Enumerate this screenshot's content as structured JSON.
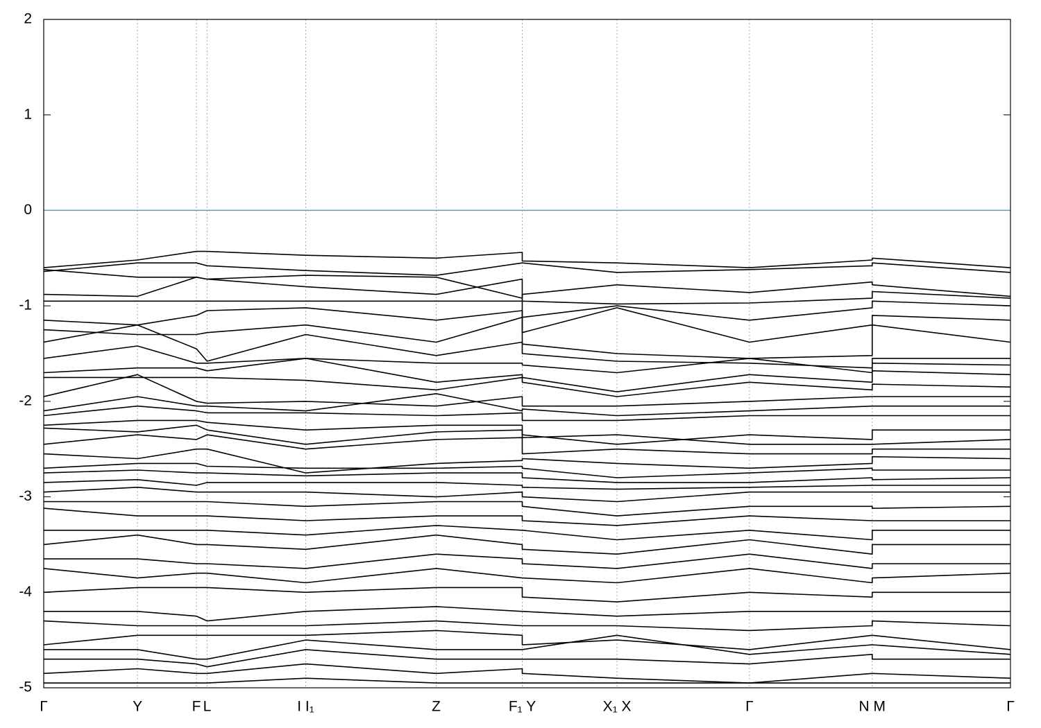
{
  "chart_data": {
    "type": "line",
    "color": "#000000",
    "fermi_level": 0,
    "fermi_color": "#4aa6bf",
    "x": [
      0,
      0.097,
      0.158,
      0.169,
      0.271,
      0.406,
      0.495,
      0.495,
      0.593,
      0.73,
      0.857,
      0.857,
      1
    ],
    "xlim": [
      0,
      1
    ],
    "xticks": [
      {
        "value": 0,
        "label": "Γ"
      },
      {
        "value": 0.097,
        "label": "Y"
      },
      {
        "value": 0.158,
        "label": "F"
      },
      {
        "value": 0.169,
        "label": "L"
      },
      {
        "value": 0.271,
        "label": "I I₁"
      },
      {
        "value": 0.406,
        "label": "Z"
      },
      {
        "value": 0.495,
        "label": "F₁ Y"
      },
      {
        "value": 0.593,
        "label": "X₁ X"
      },
      {
        "value": 0.73,
        "label": "Γ"
      },
      {
        "value": 0.857,
        "label": "N M"
      },
      {
        "value": 1,
        "label": "Γ"
      }
    ],
    "xgrid": true,
    "ylim": [
      -5,
      2
    ],
    "yticks": [
      2,
      1,
      0,
      -1,
      -2,
      -3,
      -4,
      -5
    ],
    "series": [
      {
        "values": [
          -0.6,
          -0.52,
          -0.43,
          -0.43,
          -0.47,
          -0.5,
          -0.44,
          -0.53,
          -0.55,
          -0.6,
          -0.52,
          -0.5,
          -0.6
        ]
      },
      {
        "values": [
          -0.64,
          -0.55,
          -0.55,
          -0.58,
          -0.63,
          -0.68,
          -0.55,
          -0.55,
          -0.65,
          -0.62,
          -0.58,
          -0.55,
          -0.65
        ]
      },
      {
        "values": [
          -0.62,
          -0.7,
          -0.7,
          -0.72,
          -0.68,
          -0.7,
          -0.92,
          -0.88,
          -0.78,
          -0.86,
          -0.75,
          -0.78,
          -0.9
        ]
      },
      {
        "values": [
          -0.88,
          -0.9,
          -0.7,
          -0.72,
          -0.8,
          -0.88,
          -0.72,
          -0.95,
          -0.98,
          -0.97,
          -0.92,
          -0.85,
          -0.92
        ]
      },
      {
        "values": [
          -0.95,
          -0.95,
          -0.95,
          -0.95,
          -0.95,
          -0.95,
          -0.95,
          -1.12,
          -1.0,
          -1.15,
          -1.02,
          -0.95,
          -1.0
        ]
      },
      {
        "values": [
          -1.15,
          -1.2,
          -1.1,
          -1.05,
          -1.02,
          -1.15,
          -1.05,
          -1.28,
          -1.02,
          -1.38,
          -1.2,
          -1.1,
          -1.15
        ]
      },
      {
        "values": [
          -1.25,
          -1.3,
          -1.3,
          -1.28,
          -1.2,
          -1.38,
          -1.12,
          -1.4,
          -1.5,
          -1.55,
          -1.52,
          -1.2,
          -1.38
        ]
      },
      {
        "values": [
          -1.38,
          -1.2,
          -1.45,
          -1.58,
          -1.3,
          -1.52,
          -1.38,
          -1.5,
          -1.58,
          -1.6,
          -1.65,
          -1.55,
          -1.55
        ]
      },
      {
        "values": [
          -1.55,
          -1.42,
          -1.6,
          -1.6,
          -1.55,
          -1.6,
          -1.6,
          -1.62,
          -1.7,
          -1.55,
          -1.7,
          -1.6,
          -1.62
        ]
      },
      {
        "values": [
          -1.7,
          -1.65,
          -1.65,
          -1.68,
          -1.55,
          -1.8,
          -1.72,
          -1.75,
          -1.9,
          -1.72,
          -1.8,
          -1.68,
          -1.72
        ]
      },
      {
        "values": [
          -1.75,
          -1.75,
          -1.75,
          -1.75,
          -1.78,
          -1.88,
          -1.75,
          -1.8,
          -1.95,
          -1.8,
          -1.88,
          -1.82,
          -1.85
        ]
      },
      {
        "values": [
          -1.95,
          -1.72,
          -2.0,
          -2.02,
          -2.0,
          -2.05,
          -1.95,
          -2.05,
          -2.05,
          -2.0,
          -1.95,
          -1.95,
          -1.95
        ]
      },
      {
        "values": [
          -2.1,
          -1.95,
          -2.05,
          -2.05,
          -2.1,
          -1.92,
          -2.1,
          -2.08,
          -2.15,
          -2.1,
          -2.05,
          -2.05,
          -2.05
        ]
      },
      {
        "values": [
          -2.15,
          -2.05,
          -2.1,
          -2.12,
          -2.12,
          -2.15,
          -2.12,
          -2.2,
          -2.2,
          -2.15,
          -2.15,
          -2.15,
          -2.15
        ]
      },
      {
        "values": [
          -2.25,
          -2.2,
          -2.2,
          -2.22,
          -2.3,
          -2.25,
          -2.25,
          -2.35,
          -2.45,
          -2.35,
          -2.4,
          -2.3,
          -2.3
        ]
      },
      {
        "values": [
          -2.28,
          -2.32,
          -2.25,
          -2.3,
          -2.45,
          -2.32,
          -2.3,
          -2.38,
          -2.35,
          -2.45,
          -2.45,
          -2.45,
          -2.4
        ]
      },
      {
        "values": [
          -2.45,
          -2.35,
          -2.4,
          -2.35,
          -2.5,
          -2.4,
          -2.38,
          -2.55,
          -2.5,
          -2.55,
          -2.55,
          -2.5,
          -2.5
        ]
      },
      {
        "values": [
          -2.55,
          -2.6,
          -2.5,
          -2.5,
          -2.75,
          -2.65,
          -2.62,
          -2.6,
          -2.65,
          -2.7,
          -2.65,
          -2.58,
          -2.6
        ]
      },
      {
        "values": [
          -2.7,
          -2.65,
          -2.65,
          -2.68,
          -2.7,
          -2.7,
          -2.68,
          -2.7,
          -2.8,
          -2.75,
          -2.7,
          -2.72,
          -2.72
        ]
      },
      {
        "values": [
          -2.75,
          -2.72,
          -2.75,
          -2.75,
          -2.78,
          -2.75,
          -2.75,
          -2.8,
          -2.85,
          -2.85,
          -2.8,
          -2.82,
          -2.8
        ]
      },
      {
        "values": [
          -2.85,
          -2.82,
          -2.88,
          -2.85,
          -2.85,
          -2.85,
          -2.88,
          -2.9,
          -2.92,
          -2.9,
          -2.88,
          -2.88,
          -2.88
        ]
      },
      {
        "values": [
          -2.95,
          -2.9,
          -2.95,
          -2.95,
          -2.95,
          -3.0,
          -2.95,
          -3.0,
          -3.05,
          -2.95,
          -2.95,
          -2.95,
          -2.95
        ]
      },
      {
        "values": [
          -3.05,
          -3.05,
          -3.05,
          -3.05,
          -3.1,
          -3.05,
          -3.05,
          -3.1,
          -3.2,
          -3.1,
          -3.1,
          -3.12,
          -3.1
        ]
      },
      {
        "values": [
          -3.12,
          -3.2,
          -3.2,
          -3.2,
          -3.25,
          -3.2,
          -3.2,
          -3.25,
          -3.3,
          -3.2,
          -3.25,
          -3.25,
          -3.25
        ]
      },
      {
        "values": [
          -3.35,
          -3.35,
          -3.35,
          -3.35,
          -3.4,
          -3.3,
          -3.35,
          -3.35,
          -3.45,
          -3.35,
          -3.45,
          -3.35,
          -3.35
        ]
      },
      {
        "values": [
          -3.5,
          -3.4,
          -3.5,
          -3.5,
          -3.55,
          -3.4,
          -3.5,
          -3.55,
          -3.6,
          -3.45,
          -3.6,
          -3.5,
          -3.5
        ]
      },
      {
        "values": [
          -3.65,
          -3.65,
          -3.7,
          -3.7,
          -3.75,
          -3.6,
          -3.65,
          -3.7,
          -3.75,
          -3.6,
          -3.75,
          -3.7,
          -3.7
        ]
      },
      {
        "values": [
          -3.75,
          -3.85,
          -3.8,
          -3.8,
          -3.9,
          -3.75,
          -3.85,
          -3.85,
          -3.9,
          -3.75,
          -3.9,
          -3.85,
          -3.8
        ]
      },
      {
        "values": [
          -4.0,
          -3.95,
          -3.95,
          -3.95,
          -4.0,
          -3.95,
          -3.95,
          -4.05,
          -4.1,
          -4.0,
          -4.05,
          -4.0,
          -4.0
        ]
      },
      {
        "values": [
          -4.2,
          -4.2,
          -4.25,
          -4.3,
          -4.2,
          -4.15,
          -4.2,
          -4.2,
          -4.25,
          -4.2,
          -4.2,
          -4.2,
          -4.2
        ]
      },
      {
        "values": [
          -4.3,
          -4.35,
          -4.35,
          -4.35,
          -4.35,
          -4.3,
          -4.35,
          -4.35,
          -4.35,
          -4.4,
          -4.35,
          -4.3,
          -4.35
        ]
      },
      {
        "values": [
          -4.55,
          -4.45,
          -4.45,
          -4.45,
          -4.45,
          -4.4,
          -4.45,
          -4.55,
          -4.5,
          -4.6,
          -4.45,
          -4.45,
          -4.6
        ]
      },
      {
        "values": [
          -4.6,
          -4.6,
          -4.7,
          -4.7,
          -4.5,
          -4.6,
          -4.6,
          -4.6,
          -4.45,
          -4.65,
          -4.55,
          -4.55,
          -4.65
        ]
      },
      {
        "values": [
          -4.7,
          -4.7,
          -4.75,
          -4.78,
          -4.6,
          -4.7,
          -4.7,
          -4.7,
          -4.7,
          -4.75,
          -4.65,
          -4.7,
          -4.7
        ]
      },
      {
        "values": [
          -4.85,
          -4.8,
          -4.85,
          -4.85,
          -4.75,
          -4.85,
          -4.8,
          -4.85,
          -4.9,
          -4.95,
          -4.85,
          -4.85,
          -4.9
        ]
      },
      {
        "values": [
          -4.95,
          -4.95,
          -4.95,
          -4.95,
          -4.9,
          -4.95,
          -4.95,
          -4.95,
          -4.95,
          -4.95,
          -4.95,
          -4.95,
          -4.95
        ]
      }
    ]
  }
}
